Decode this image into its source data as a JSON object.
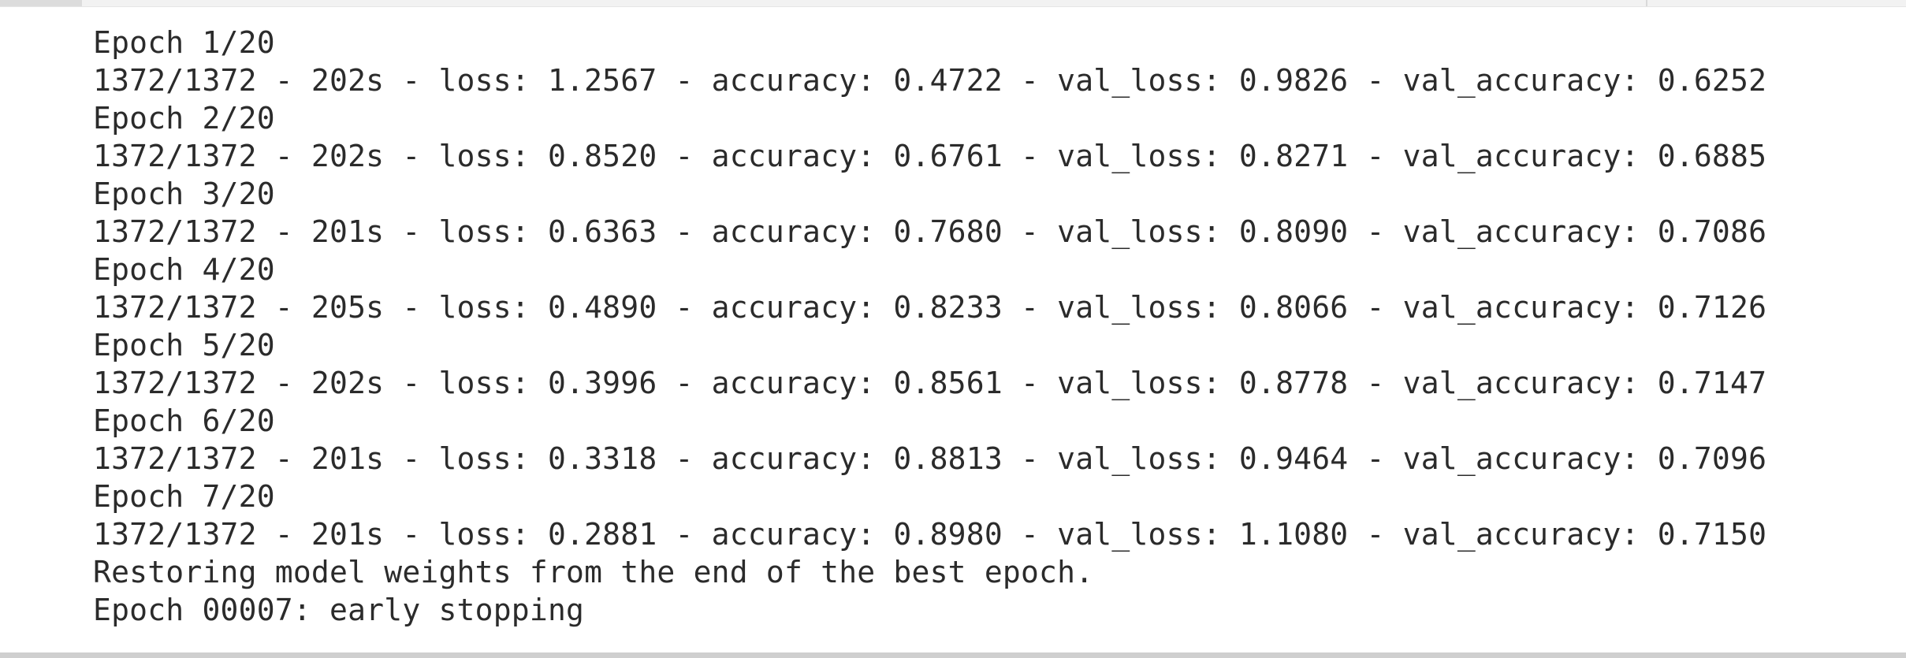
{
  "output": {
    "lines": [
      "Epoch 1/20",
      "1372/1372 - 202s - loss: 1.2567 - accuracy: 0.4722 - val_loss: 0.9826 - val_accuracy: 0.6252",
      "Epoch 2/20",
      "1372/1372 - 202s - loss: 0.8520 - accuracy: 0.6761 - val_loss: 0.8271 - val_accuracy: 0.6885",
      "Epoch 3/20",
      "1372/1372 - 201s - loss: 0.6363 - accuracy: 0.7680 - val_loss: 0.8090 - val_accuracy: 0.7086",
      "Epoch 4/20",
      "1372/1372 - 205s - loss: 0.4890 - accuracy: 0.8233 - val_loss: 0.8066 - val_accuracy: 0.7126",
      "Epoch 5/20",
      "1372/1372 - 202s - loss: 0.3996 - accuracy: 0.8561 - val_loss: 0.8778 - val_accuracy: 0.7147",
      "Epoch 6/20",
      "1372/1372 - 201s - loss: 0.3318 - accuracy: 0.8813 - val_loss: 0.9464 - val_accuracy: 0.7096",
      "Epoch 7/20",
      "1372/1372 - 201s - loss: 0.2881 - accuracy: 0.8980 - val_loss: 1.1080 - val_accuracy: 0.7150",
      "Restoring model weights from the end of the best epoch.",
      "Epoch 00007: early stopping"
    ]
  }
}
